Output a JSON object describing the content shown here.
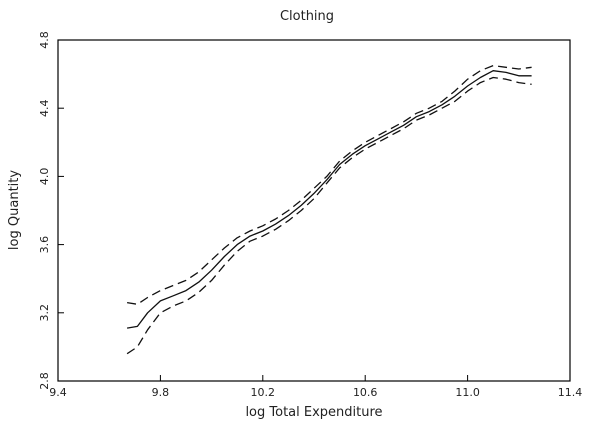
{
  "chart_data": {
    "type": "line",
    "title": "Clothing",
    "xlabel": "log Total Expenditure",
    "ylabel": "log Quantity",
    "xlim": [
      9.4,
      11.4
    ],
    "ylim": [
      2.8,
      4.8
    ],
    "xticks": [
      9.4,
      9.8,
      10.2,
      10.6,
      11.0,
      11.4
    ],
    "xtick_labels": [
      "9.4",
      "9.8",
      "10.2",
      "10.6",
      "11.0",
      "11.4"
    ],
    "yticks": [
      2.8,
      3.2,
      3.6,
      4.0,
      4.4,
      4.8
    ],
    "ytick_labels": [
      "2.8",
      "3.2",
      "3.6",
      "4.0",
      "4.4",
      "4.8"
    ],
    "grid": false,
    "legend": "none",
    "series": [
      {
        "style": "solid",
        "x": [
          9.67,
          9.71,
          9.75,
          9.8,
          9.85,
          9.9,
          9.95,
          10.0,
          10.05,
          10.1,
          10.15,
          10.2,
          10.25,
          10.3,
          10.35,
          10.4,
          10.45,
          10.5,
          10.55,
          10.6,
          10.65,
          10.7,
          10.75,
          10.8,
          10.85,
          10.9,
          10.95,
          11.0,
          11.05,
          11.1,
          11.15,
          11.2,
          11.25
        ],
        "y": [
          3.11,
          3.12,
          3.2,
          3.27,
          3.3,
          3.33,
          3.38,
          3.45,
          3.53,
          3.6,
          3.65,
          3.68,
          3.72,
          3.77,
          3.83,
          3.9,
          3.98,
          4.07,
          4.13,
          4.18,
          4.22,
          4.26,
          4.3,
          4.35,
          4.38,
          4.42,
          4.47,
          4.53,
          4.58,
          4.62,
          4.61,
          4.59,
          4.59
        ]
      },
      {
        "style": "dashed",
        "x": [
          9.67,
          9.71,
          9.75,
          9.8,
          9.85,
          9.9,
          9.95,
          10.0,
          10.05,
          10.1,
          10.15,
          10.2,
          10.25,
          10.3,
          10.35,
          10.4,
          10.45,
          10.5,
          10.55,
          10.6,
          10.65,
          10.7,
          10.75,
          10.8,
          10.85,
          10.9,
          10.95,
          11.0,
          11.05,
          11.1,
          11.15,
          11.2,
          11.25
        ],
        "y": [
          3.26,
          3.25,
          3.29,
          3.33,
          3.36,
          3.39,
          3.44,
          3.51,
          3.58,
          3.64,
          3.68,
          3.71,
          3.75,
          3.8,
          3.86,
          3.93,
          4.0,
          4.09,
          4.15,
          4.2,
          4.24,
          4.28,
          4.32,
          4.37,
          4.4,
          4.44,
          4.5,
          4.57,
          4.62,
          4.65,
          4.64,
          4.63,
          4.64
        ]
      },
      {
        "style": "dashed",
        "x": [
          9.67,
          9.71,
          9.75,
          9.8,
          9.85,
          9.9,
          9.95,
          10.0,
          10.05,
          10.1,
          10.15,
          10.2,
          10.25,
          10.3,
          10.35,
          10.4,
          10.45,
          10.5,
          10.55,
          10.6,
          10.65,
          10.7,
          10.75,
          10.8,
          10.85,
          10.9,
          10.95,
          11.0,
          11.05,
          11.1,
          11.15,
          11.2,
          11.25
        ],
        "y": [
          2.96,
          3.0,
          3.1,
          3.2,
          3.24,
          3.27,
          3.32,
          3.39,
          3.48,
          3.56,
          3.62,
          3.65,
          3.69,
          3.74,
          3.8,
          3.87,
          3.96,
          4.05,
          4.11,
          4.16,
          4.2,
          4.24,
          4.28,
          4.33,
          4.36,
          4.4,
          4.44,
          4.5,
          4.55,
          4.58,
          4.57,
          4.55,
          4.54
        ]
      }
    ]
  }
}
